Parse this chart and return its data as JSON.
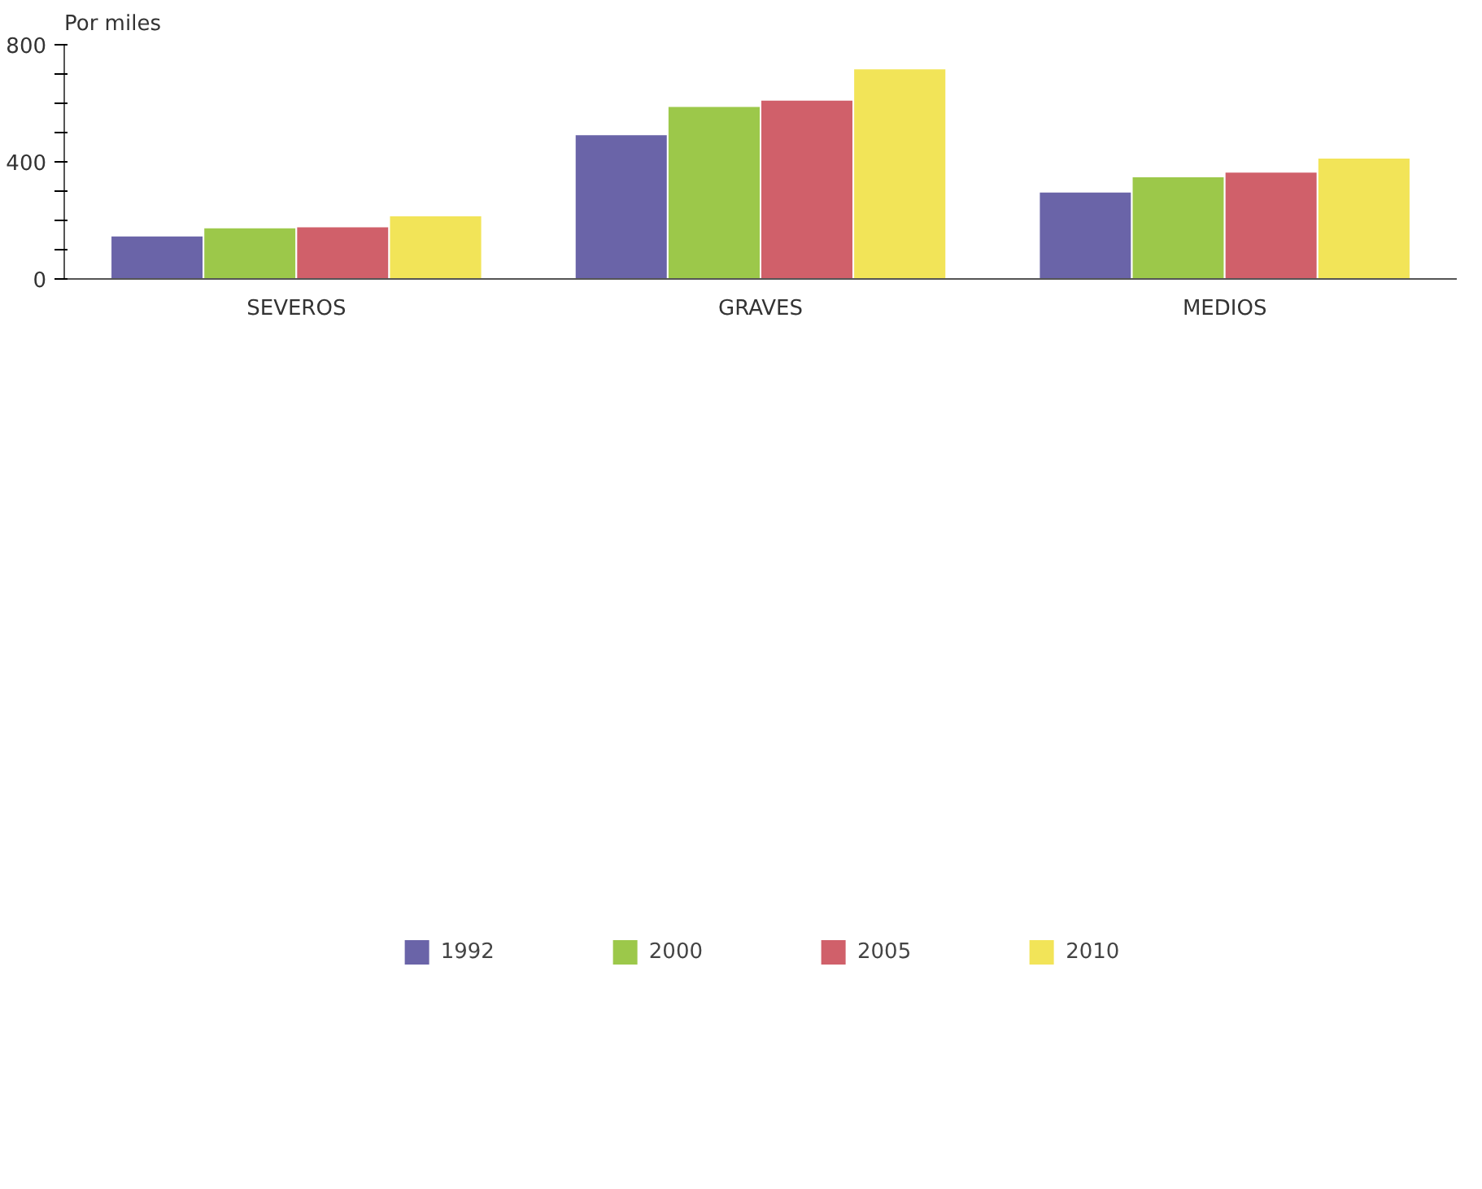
{
  "chart_data": {
    "type": "bar",
    "ylabel": "Por miles",
    "categories": [
      "SEVEROS",
      "GRAVES",
      "MEDIOS"
    ],
    "series": [
      {
        "name": "1992",
        "color": "#6a64a8",
        "values": [
          148,
          494,
          298
        ]
      },
      {
        "name": "2000",
        "color": "#9cc84a",
        "values": [
          176,
          590,
          350
        ]
      },
      {
        "name": "2005",
        "color": "#d0606a",
        "values": [
          179,
          612,
          366
        ]
      },
      {
        "name": "2010",
        "color": "#f2e458",
        "values": [
          217,
          719,
          414
        ]
      }
    ],
    "ylim": [
      0,
      800
    ],
    "yticks": [
      0,
      {
        "value": 100,
        "label": null
      },
      {
        "value": 200,
        "label": null
      },
      {
        "value": 300,
        "label": null
      },
      400,
      {
        "value": 500,
        "label": null
      },
      {
        "value": 600,
        "label": null
      },
      {
        "value": 700,
        "label": null
      },
      800
    ],
    "grid": false,
    "legend": "bottom"
  }
}
